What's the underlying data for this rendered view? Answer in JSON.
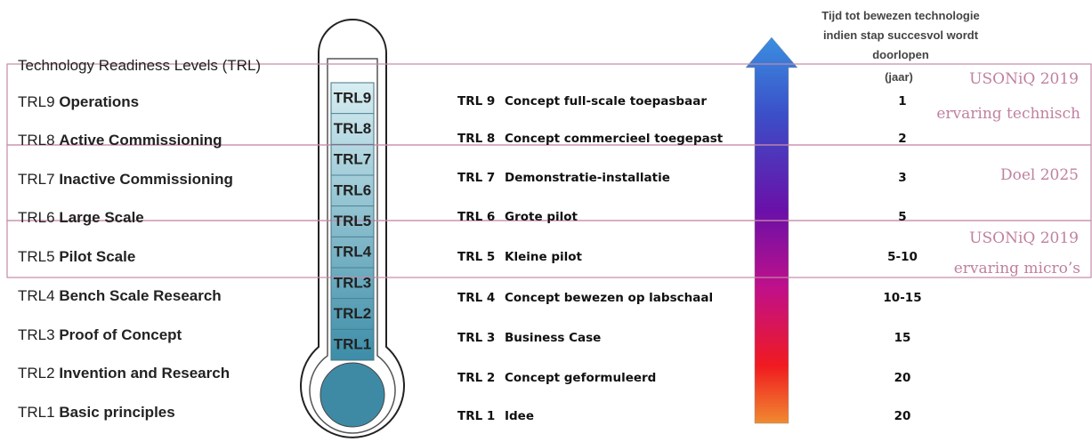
{
  "left": {
    "title": "Technology Readiness Levels (TRL)",
    "levels": [
      {
        "code": "TRL9",
        "name": "Operations"
      },
      {
        "code": "TRL8",
        "name": "Active Commissioning"
      },
      {
        "code": "TRL7",
        "name": "Inactive Commissioning"
      },
      {
        "code": "TRL6",
        "name": "Large Scale"
      },
      {
        "code": "TRL5",
        "name": "Pilot Scale"
      },
      {
        "code": "TRL4",
        "name": "Bench Scale Research"
      },
      {
        "code": "TRL3",
        "name": "Proof of Concept"
      },
      {
        "code": "TRL2",
        "name": "Invention and Research"
      },
      {
        "code": "TRL1",
        "name": "Basic principles"
      }
    ]
  },
  "thermometer": {
    "labels": [
      "TRL9",
      "TRL8",
      "TRL7",
      "TRL6",
      "TRL5",
      "TRL4",
      "TRL3",
      "TRL2",
      "TRL1"
    ]
  },
  "steps": [
    {
      "code": "TRL 9",
      "name": "Concept full-scale toepasbaar"
    },
    {
      "code": "TRL 8",
      "name": "Concept commercieel toegepast"
    },
    {
      "code": "TRL 7",
      "name": "Demonstratie-installatie"
    },
    {
      "code": "TRL 6",
      "name": "Grote pilot"
    },
    {
      "code": "TRL 5",
      "name": "Kleine pilot"
    },
    {
      "code": "TRL 4",
      "name": "Concept bewezen op labschaal"
    },
    {
      "code": "TRL 3",
      "name": "Business Case"
    },
    {
      "code": "TRL 2",
      "name": "Concept geformuleerd"
    },
    {
      "code": "TRL 1",
      "name": "Idee"
    }
  ],
  "time": {
    "header": [
      "Tijd tot bewezen technologie",
      "indien stap succesvol wordt",
      "doorlopen"
    ],
    "unit": "(jaar)",
    "years": [
      "1",
      "2",
      "3",
      "5",
      "5-10",
      "10-15",
      "15",
      "20",
      "20"
    ]
  },
  "annotations": [
    "USONiQ 2019",
    "ervaring technisch",
    "Doel 2025",
    "USONiQ  2019",
    "ervaring micro’s"
  ]
}
